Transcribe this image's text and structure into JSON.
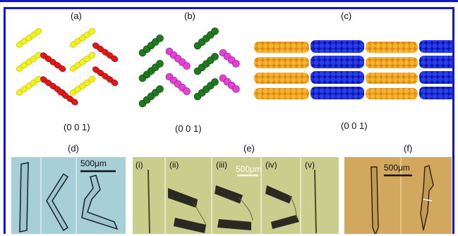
{
  "figure": {
    "panels": {
      "a": {
        "label": "(a)",
        "plane": "(0 0 1)",
        "colors": [
          "#f2f21a",
          "#e01818"
        ]
      },
      "b": {
        "label": "(b)",
        "plane": "(0 0 1)",
        "colors": [
          "#1f7a1f",
          "#e640d6"
        ]
      },
      "c": {
        "label": "(c)",
        "plane": "(0 0 1)",
        "colors": [
          "#f2a21a",
          "#1a2ad8"
        ]
      },
      "d": {
        "label": "(d)",
        "scale": "500μm",
        "background": "#a6cfd6"
      },
      "e": {
        "label": "(e)",
        "scale": "500μm",
        "background": "#c9ce8c",
        "sub": [
          "(i)",
          "(ii)",
          "(iii)",
          "(iv)",
          "(v)"
        ]
      },
      "f": {
        "label": "(f)",
        "scale": "500μm",
        "background": "#d1a85e"
      }
    },
    "accent": "#1414d2"
  }
}
